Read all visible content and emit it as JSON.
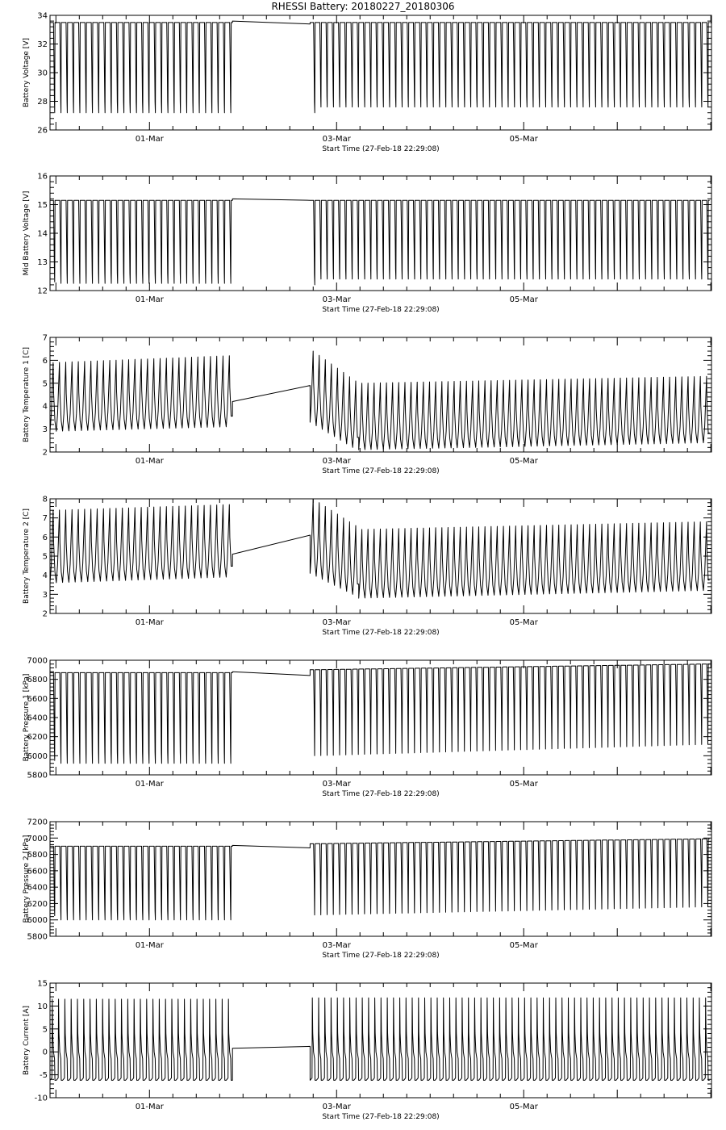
{
  "figure": {
    "title": "RHESSI Battery: 20180227_20180306"
  },
  "chart_data": [
    {
      "type": "line",
      "ylabel": "Battery Voltage [V]",
      "xlabel": "Start Time (27-Feb-18 22:29:08)",
      "x_ticks": [
        "01-Mar",
        "03-Mar",
        "05-Mar"
      ],
      "y_ticks": [
        "26",
        "28",
        "30",
        "32",
        "34"
      ],
      "ylim": [
        26,
        34
      ],
      "series": [
        {
          "segments": [
            {
              "pattern": "discharge",
              "start": 0.0,
              "end": 1.95,
              "high": 33.5,
              "low": 27.2,
              "first_low": 27.2
            },
            {
              "pattern": "flat",
              "start": 1.95,
              "end": 2.78,
              "y0": 33.6,
              "y1": 33.4
            },
            {
              "pattern": "discharge",
              "start": 2.78,
              "end": 7.05,
              "high": 33.5,
              "low": 27.6,
              "first_low": 27.2
            }
          ]
        }
      ]
    },
    {
      "type": "line",
      "ylabel": "Mid Battery Voltage [V]",
      "xlabel": "Start Time (27-Feb-18 22:29:08)",
      "x_ticks": [
        "01-Mar",
        "03-Mar",
        "05-Mar"
      ],
      "y_ticks": [
        "12",
        "13",
        "14",
        "15",
        "16"
      ],
      "ylim": [
        12,
        16
      ],
      "series": [
        {
          "segments": [
            {
              "pattern": "discharge",
              "start": 0.0,
              "end": 1.95,
              "high": 15.15,
              "low": 12.25,
              "first_low": 12.3
            },
            {
              "pattern": "flat",
              "start": 1.95,
              "end": 2.78,
              "y0": 15.2,
              "y1": 15.15
            },
            {
              "pattern": "discharge",
              "start": 2.78,
              "end": 7.05,
              "high": 15.15,
              "low": 12.4,
              "first_low": 12.2
            }
          ]
        }
      ]
    },
    {
      "type": "line",
      "ylabel": "Battery Temperature 1 [C]",
      "xlabel": "Start Time (27-Feb-18 22:29:08)",
      "x_ticks": [
        "01-Mar",
        "03-Mar",
        "05-Mar"
      ],
      "y_ticks": [
        "2",
        "3",
        "4",
        "5",
        "6",
        "7"
      ],
      "ylim": [
        2,
        7
      ],
      "series": [
        {
          "segments": [
            {
              "pattern": "wave",
              "start": 0.0,
              "end": 1.95,
              "high_start": 5.9,
              "high_end": 6.2,
              "low_start": 2.9,
              "low_end": 3.1
            },
            {
              "pattern": "flat",
              "start": 1.95,
              "end": 2.78,
              "y0": 4.2,
              "y1": 4.9
            },
            {
              "pattern": "wave",
              "start": 2.78,
              "end": 3.3,
              "high_start": 6.4,
              "high_end": 5.1,
              "low_start": 3.3,
              "low_end": 2.2
            },
            {
              "pattern": "wave",
              "start": 3.3,
              "end": 7.05,
              "high_start": 5.0,
              "high_end": 5.3,
              "low_start": 2.1,
              "low_end": 2.4
            }
          ]
        }
      ]
    },
    {
      "type": "line",
      "ylabel": "Battery Temperature 2 [C]",
      "xlabel": "Start Time (27-Feb-18 22:29:08)",
      "x_ticks": [
        "01-Mar",
        "03-Mar",
        "05-Mar"
      ],
      "y_ticks": [
        "2",
        "3",
        "4",
        "5",
        "6",
        "7",
        "8"
      ],
      "ylim": [
        2,
        8
      ],
      "series": [
        {
          "segments": [
            {
              "pattern": "wave",
              "start": 0.0,
              "end": 1.95,
              "high_start": 7.4,
              "high_end": 7.7,
              "low_start": 3.6,
              "low_end": 3.9
            },
            {
              "pattern": "flat",
              "start": 1.95,
              "end": 2.78,
              "y0": 5.1,
              "y1": 6.1
            },
            {
              "pattern": "wave",
              "start": 2.78,
              "end": 3.3,
              "high_start": 8.0,
              "high_end": 6.6,
              "low_start": 4.1,
              "low_end": 3.0
            },
            {
              "pattern": "wave",
              "start": 3.3,
              "end": 7.05,
              "high_start": 6.4,
              "high_end": 6.8,
              "low_start": 2.8,
              "low_end": 3.2
            }
          ]
        }
      ]
    },
    {
      "type": "line",
      "ylabel": "Battery Pressure 1 [kPa]",
      "xlabel": "Start Time (27-Feb-18 22:29:08)",
      "x_ticks": [
        "01-Mar",
        "03-Mar",
        "05-Mar"
      ],
      "y_ticks": [
        "5800",
        "6000",
        "6200",
        "6400",
        "6600",
        "6800",
        "7000"
      ],
      "ylim": [
        5800,
        7000
      ],
      "series": [
        {
          "segments": [
            {
              "pattern": "discharge",
              "start": 0.0,
              "end": 1.95,
              "high": 6870,
              "low": 5920,
              "first_low": 5950
            },
            {
              "pattern": "flat",
              "start": 1.95,
              "end": 2.78,
              "y0": 6880,
              "y1": 6840
            },
            {
              "pattern": "discharge_trend",
              "start": 2.78,
              "end": 7.05,
              "high_start": 6900,
              "high_end": 6960,
              "low_start": 6000,
              "low_end": 6120
            }
          ]
        }
      ]
    },
    {
      "type": "line",
      "ylabel": "Battery Pressure 2 [kPa]",
      "xlabel": "Start Time (27-Feb-18 22:29:08)",
      "x_ticks": [
        "01-Mar",
        "03-Mar",
        "05-Mar"
      ],
      "y_ticks": [
        "5800",
        "6000",
        "6200",
        "6400",
        "6600",
        "6800",
        "7000",
        "7200"
      ],
      "ylim": [
        5800,
        7200
      ],
      "series": [
        {
          "segments": [
            {
              "pattern": "discharge",
              "start": 0.0,
              "end": 1.95,
              "high": 6900,
              "low": 6000,
              "first_low": 6050
            },
            {
              "pattern": "flat",
              "start": 1.95,
              "end": 2.78,
              "y0": 6910,
              "y1": 6880
            },
            {
              "pattern": "discharge_trend",
              "start": 2.78,
              "end": 7.05,
              "high_start": 6930,
              "high_end": 6990,
              "low_start": 6060,
              "low_end": 6160
            }
          ]
        }
      ]
    },
    {
      "type": "line",
      "ylabel": "Battery Current [A]",
      "xlabel": "Start Time (27-Feb-18 22:29:08)",
      "x_ticks": [
        "01-Mar",
        "03-Mar",
        "05-Mar"
      ],
      "y_ticks": [
        "-10",
        "-5",
        "0",
        "5",
        "10",
        "15"
      ],
      "ylim": [
        -10,
        15
      ],
      "series": [
        {
          "segments": [
            {
              "pattern": "current",
              "start": 0.0,
              "end": 1.95,
              "high": 11.5,
              "low": -6.2
            },
            {
              "pattern": "flat",
              "start": 1.95,
              "end": 2.78,
              "y0": 0.8,
              "y1": 1.2
            },
            {
              "pattern": "current",
              "start": 2.78,
              "end": 7.05,
              "high": 11.8,
              "low": -6.2
            }
          ]
        }
      ]
    }
  ]
}
